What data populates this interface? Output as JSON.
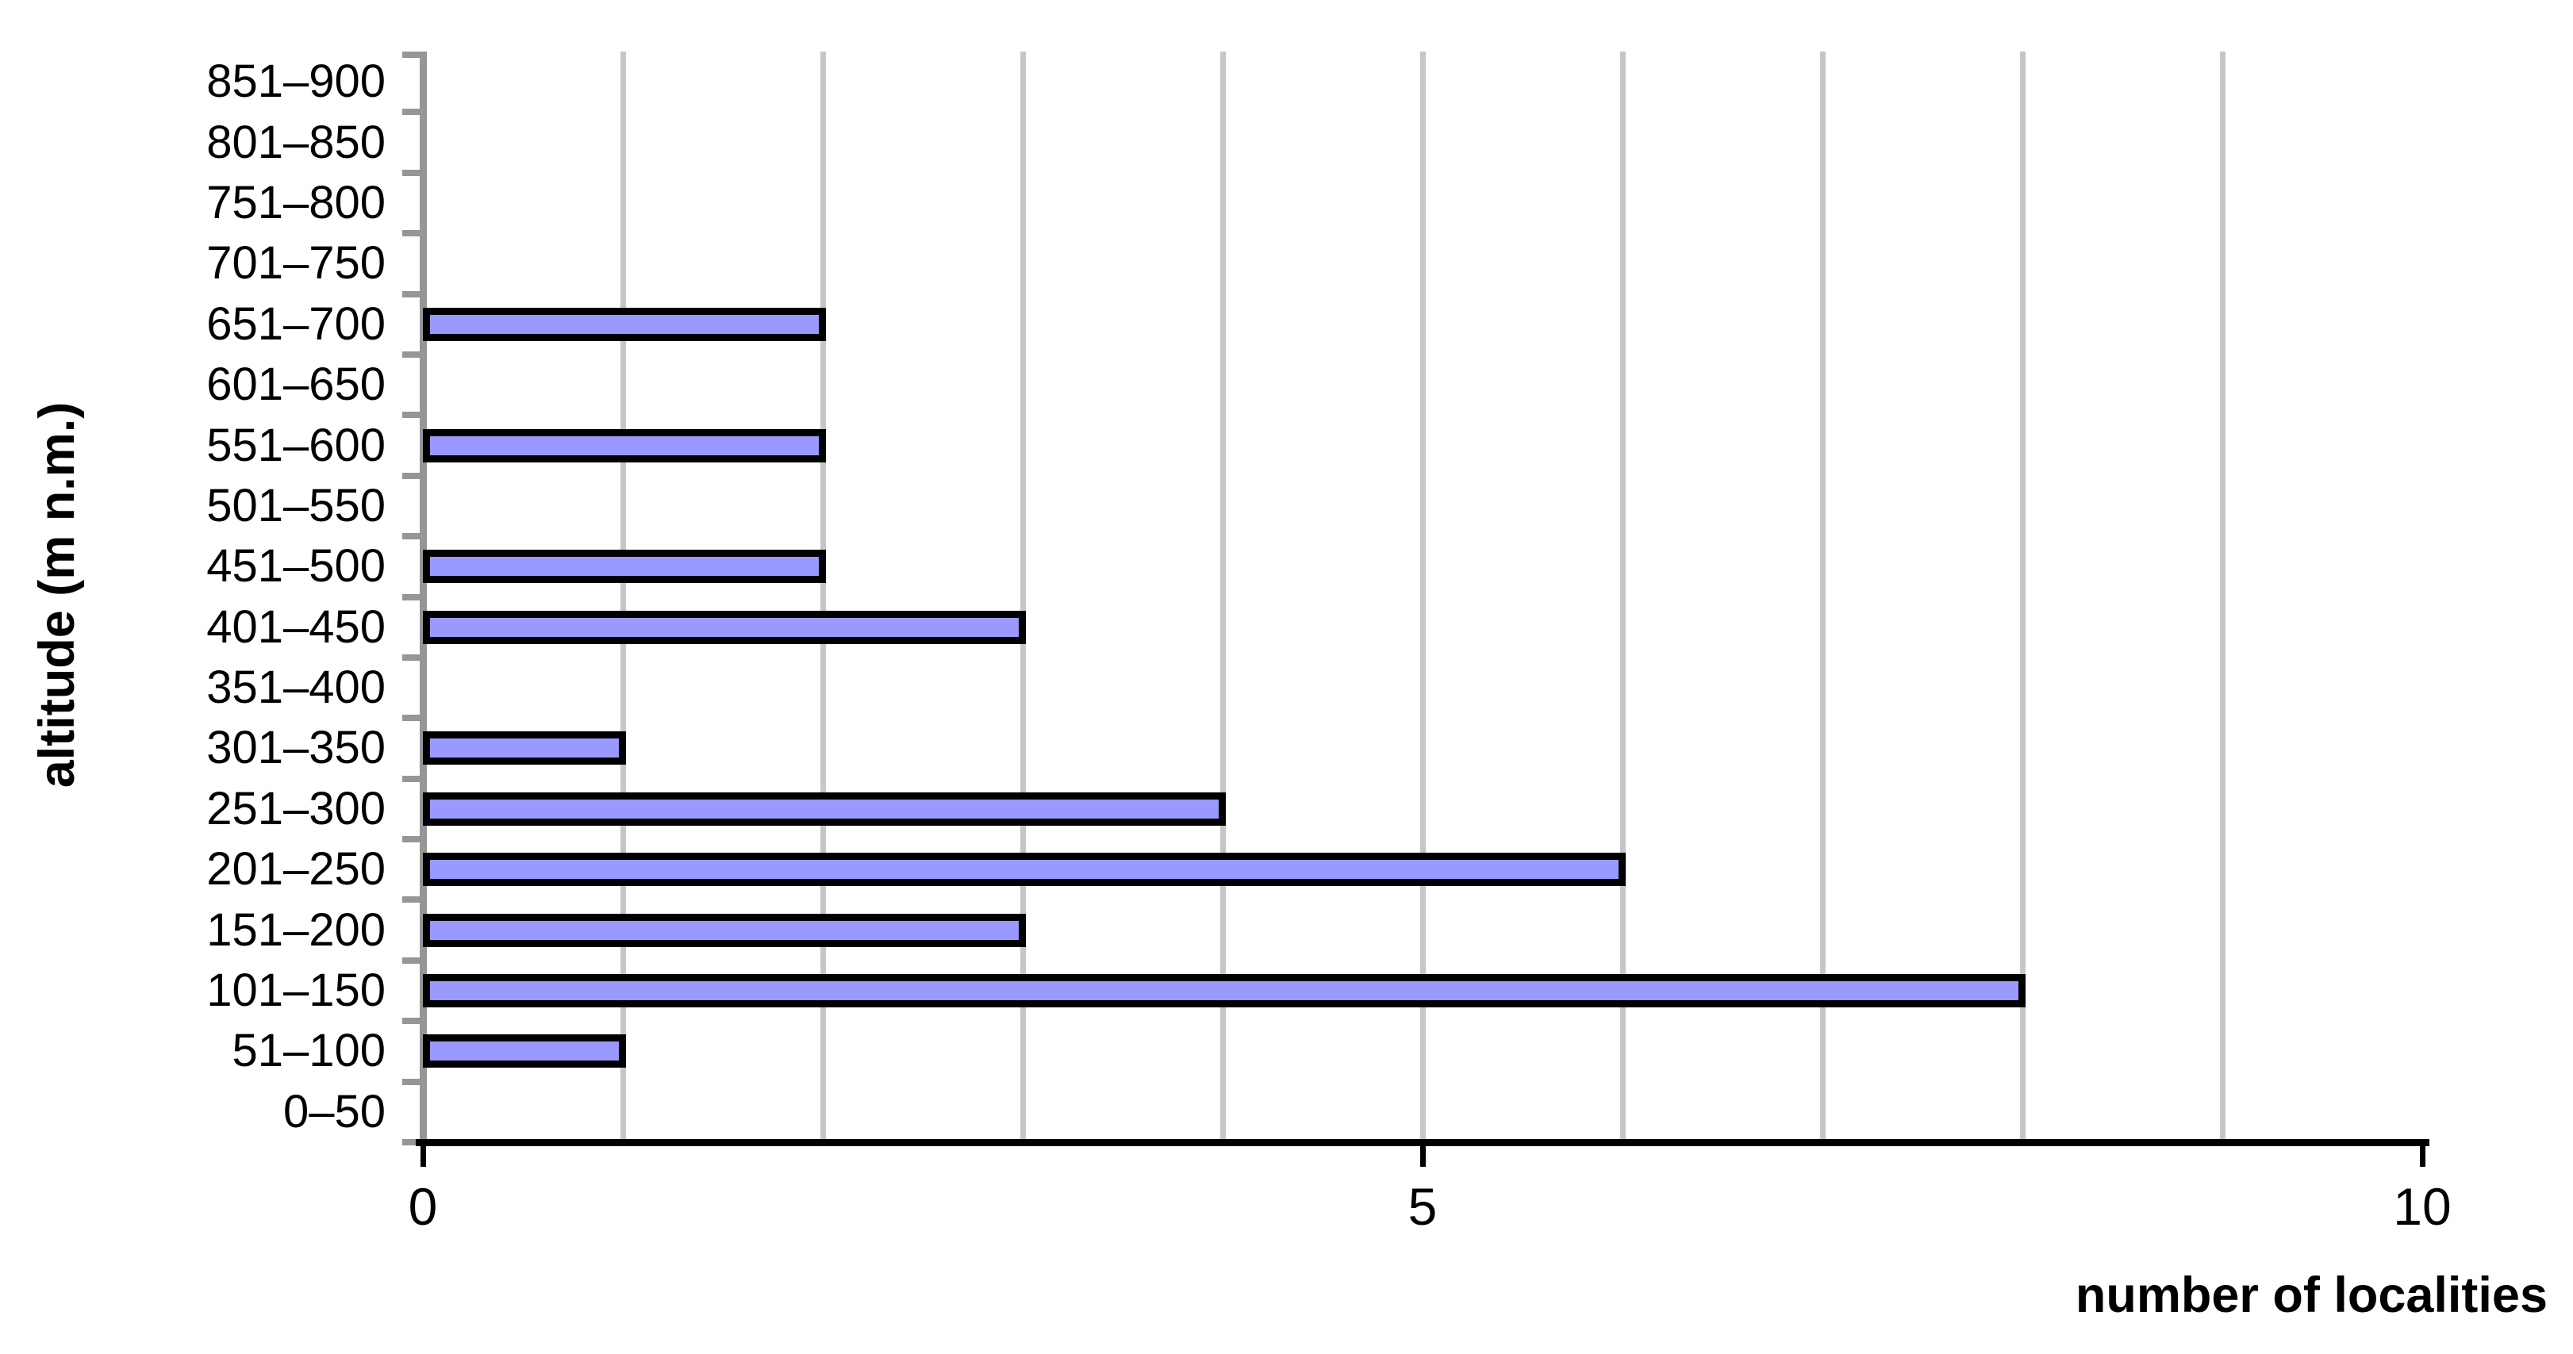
{
  "chart_data": {
    "type": "bar",
    "orientation": "horizontal",
    "title": "",
    "xlabel": "number of localities",
    "ylabel": "altitude (m n.m.)",
    "xlim": [
      0,
      10
    ],
    "x_tick_values": [
      0,
      5,
      10
    ],
    "x_tick_labels": [
      "0",
      "5",
      "10"
    ],
    "gridline_values": [
      1,
      2,
      3,
      4,
      5,
      6,
      7,
      8,
      9
    ],
    "grid": "vertical-gridlines-on",
    "legend": "none",
    "categories": [
      "851–900",
      "801–850",
      "751–800",
      "701–750",
      "651–700",
      "601–650",
      "551–600",
      "501–550",
      "451–500",
      "401–450",
      "351–400",
      "301–350",
      "251–300",
      "201–250",
      "151–200",
      "101–150",
      "51–100",
      "0–50"
    ],
    "values": [
      0,
      0,
      0,
      0,
      2,
      0,
      2,
      0,
      2,
      3,
      0,
      1,
      4,
      6,
      3,
      8,
      1,
      0
    ],
    "colors": {
      "bar_fill": "#9999ff",
      "bar_border": "#000000",
      "gridline": "#c6c6c6",
      "y_axis": "#969696",
      "x_axis": "#000000",
      "text": "#000000",
      "background": "#ffffff"
    }
  }
}
